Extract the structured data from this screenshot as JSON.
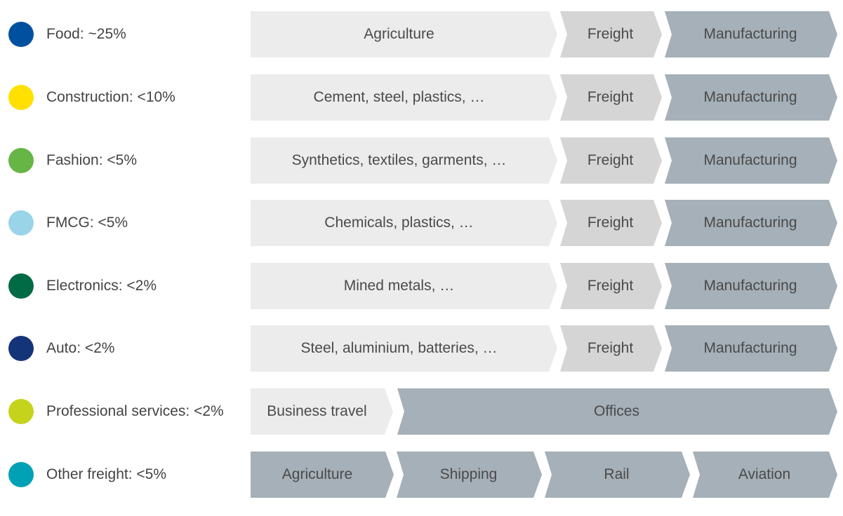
{
  "sectors": [
    {
      "label": "Food: ~25%",
      "color": "#0050a0",
      "segments": [
        {
          "label": "Agriculture",
          "tone": "light"
        },
        {
          "label": "Freight",
          "tone": "mid"
        },
        {
          "label": "Manufacturing",
          "tone": "dark"
        }
      ]
    },
    {
      "label": "Construction: <10%",
      "color": "#ffe000",
      "segments": [
        {
          "label": "Cement, steel, plastics, …",
          "tone": "light"
        },
        {
          "label": "Freight",
          "tone": "mid"
        },
        {
          "label": "Manufacturing",
          "tone": "dark"
        }
      ]
    },
    {
      "label": "Fashion: <5%",
      "color": "#66b545",
      "segments": [
        {
          "label": "Synthetics, textiles, garments, …",
          "tone": "light"
        },
        {
          "label": "Freight",
          "tone": "mid"
        },
        {
          "label": "Manufacturing",
          "tone": "dark"
        }
      ]
    },
    {
      "label": "FMCG: <5%",
      "color": "#9ad4e8",
      "segments": [
        {
          "label": "Chemicals, plastics, …",
          "tone": "light"
        },
        {
          "label": "Freight",
          "tone": "mid"
        },
        {
          "label": "Manufacturing",
          "tone": "dark"
        }
      ]
    },
    {
      "label": "Electronics: <2%",
      "color": "#006b45",
      "segments": [
        {
          "label": "Mined metals, …",
          "tone": "light"
        },
        {
          "label": "Freight",
          "tone": "mid"
        },
        {
          "label": "Manufacturing",
          "tone": "dark"
        }
      ]
    },
    {
      "label": "Auto: <2%",
      "color": "#14347a",
      "segments": [
        {
          "label": "Steel, aluminium, batteries, …",
          "tone": "light"
        },
        {
          "label": "Freight",
          "tone": "mid"
        },
        {
          "label": "Manufacturing",
          "tone": "dark"
        }
      ]
    },
    {
      "label": "Professional services: <2%",
      "color": "#c5d31d",
      "segments": [
        {
          "label": "Business travel",
          "tone": "light"
        },
        {
          "label": "Offices",
          "tone": "dark"
        }
      ]
    },
    {
      "label": "Other freight: <5%",
      "color": "#00a0b5",
      "segments": [
        {
          "label": "Agriculture",
          "tone": "dark"
        },
        {
          "label": "Shipping",
          "tone": "dark"
        },
        {
          "label": "Rail",
          "tone": "dark"
        },
        {
          "label": "Aviation",
          "tone": "dark"
        }
      ]
    }
  ]
}
